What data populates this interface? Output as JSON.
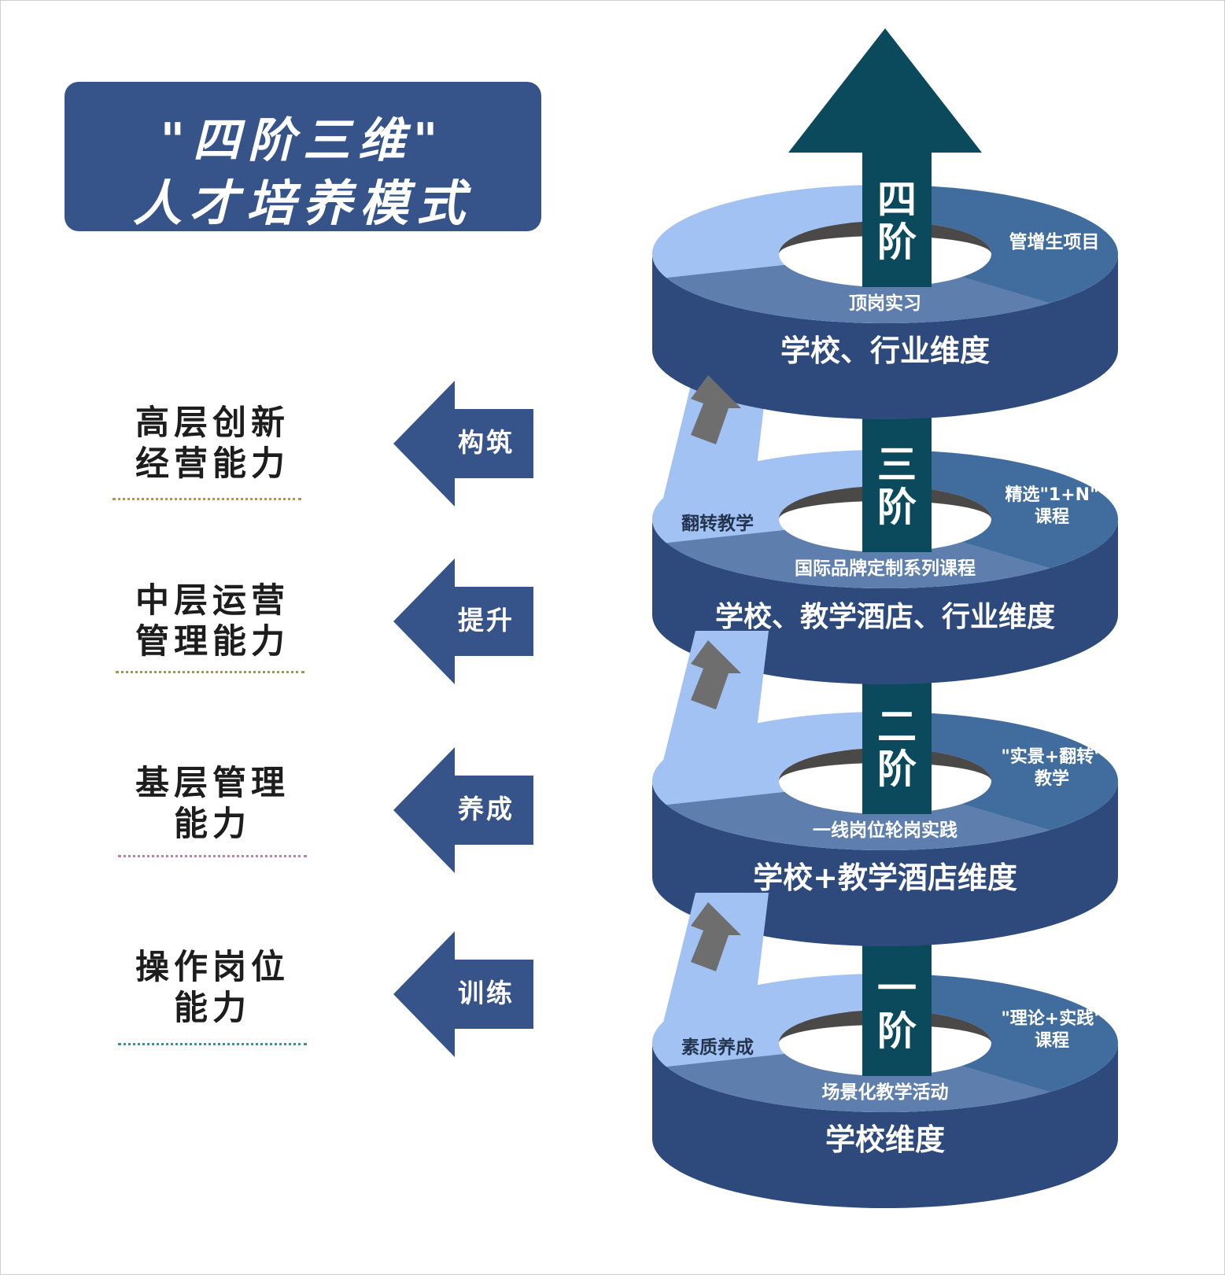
{
  "title": {
    "line1": "\"四阶三维\"",
    "line2": "人才培养模式"
  },
  "capabilities": [
    {
      "lines": [
        "高层创新",
        "经营能力"
      ],
      "action": "构筑",
      "underline_color": "#b9953f"
    },
    {
      "lines": [
        "中层运营",
        "管理能力"
      ],
      "action": "提升",
      "underline_color": "#9a9a50"
    },
    {
      "lines": [
        "基层管理",
        "能力"
      ],
      "action": "养成",
      "underline_color": "#c080a0"
    },
    {
      "lines": [
        "操作岗位",
        "能力"
      ],
      "action": "训练",
      "underline_color": "#3f8f98"
    }
  ],
  "stages": [
    {
      "stage": [
        "四",
        "阶"
      ],
      "dimension": "学校、行业维度",
      "left_segment": "",
      "front_segment": "顶岗实习",
      "right_segment": [
        "管增生项目"
      ]
    },
    {
      "stage": [
        "三",
        "阶"
      ],
      "dimension": "学校、教学酒店、行业维度",
      "left_segment": "翻转教学",
      "front_segment": "国际品牌定制系列课程",
      "right_segment": [
        "精选\"1+N\"",
        "课程"
      ]
    },
    {
      "stage": [
        "二",
        "阶"
      ],
      "dimension": "学校+教学酒店维度",
      "left_segment": "",
      "front_segment": "一线岗位轮岗实践",
      "right_segment": [
        "\"实景+翻转\"",
        "教学"
      ]
    },
    {
      "stage": [
        "一",
        "阶"
      ],
      "dimension": "学校维度",
      "left_segment": "素质养成",
      "front_segment": "场景化教学活动",
      "right_segment": [
        "\"理论+实践\"",
        "课程"
      ]
    }
  ],
  "colors": {
    "title_bg": "#36548a",
    "arrow_fill": "#36548a",
    "ring_side": "#2e4a7c",
    "ring_left": "#a2c2f3",
    "ring_front": "#5e7fae",
    "ring_right": "#416d9e",
    "ring_hole": "#4b4948",
    "center_arrow": "#0b4a5c",
    "small_arrow": "#6e6e6e"
  }
}
